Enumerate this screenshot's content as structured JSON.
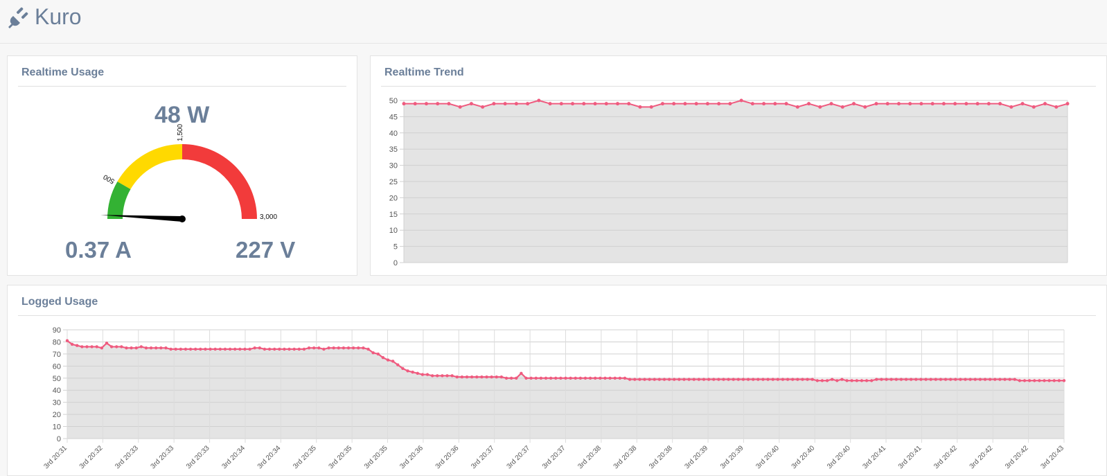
{
  "app": {
    "title": "Kuro",
    "icon": "plug-icon"
  },
  "panels": {
    "realtime_usage": {
      "title": "Realtime Usage",
      "power": "48 W",
      "current": "0.37 A",
      "voltage": "227 V",
      "gauge": {
        "min": 0,
        "max": 3000,
        "value": 48,
        "bands": [
          {
            "from": 0,
            "to": 500,
            "color": "#33b233"
          },
          {
            "from": 500,
            "to": 1500,
            "color": "#ffd900"
          },
          {
            "from": 1500,
            "to": 3000,
            "color": "#f23b3b"
          }
        ],
        "tick_labels": [
          "500",
          "1,500",
          "3,000"
        ]
      }
    },
    "realtime_trend": {
      "title": "Realtime Trend"
    },
    "logged_usage": {
      "title": "Logged Usage"
    }
  },
  "colors": {
    "accent": "#6b7f99",
    "line": "#ef5b7f",
    "fill": "#e4e4e4"
  },
  "chart_data": [
    {
      "type": "area",
      "title": "Realtime Trend",
      "ylim": [
        0,
        50
      ],
      "yticks": [
        "0",
        "5",
        "10",
        "15",
        "20",
        "25",
        "30",
        "35",
        "40",
        "45",
        "50"
      ],
      "grid": true,
      "values": [
        49,
        49,
        49,
        49,
        49,
        48,
        49,
        48,
        49,
        49,
        49,
        49,
        50,
        49,
        49,
        49,
        49,
        49,
        49,
        49,
        49,
        48,
        48,
        49,
        49,
        49,
        49,
        49,
        49,
        49,
        50,
        49,
        49,
        49,
        49,
        48,
        49,
        48,
        49,
        48,
        49,
        48,
        49,
        49,
        49,
        49,
        49,
        49,
        49,
        49,
        49,
        49,
        49,
        49,
        48,
        49,
        48,
        49,
        48,
        49
      ]
    },
    {
      "type": "area",
      "title": "Logged Usage",
      "ylim": [
        0,
        90
      ],
      "yticks": [
        "0",
        "10",
        "20",
        "30",
        "40",
        "50",
        "60",
        "70",
        "80",
        "90"
      ],
      "grid": true,
      "xtick_labels": [
        "3rd 20:31",
        "3rd 20:32",
        "3rd 20:33",
        "3rd 20:33",
        "3rd 20:33",
        "3rd 20:34",
        "3rd 20:34",
        "3rd 20:35",
        "3rd 20:35",
        "3rd 20:35",
        "3rd 20:36",
        "3rd 20:36",
        "3rd 20:37",
        "3rd 20:37",
        "3rd 20:37",
        "3rd 20:38",
        "3rd 20:38",
        "3rd 20:38",
        "3rd 20:39",
        "3rd 20:39",
        "3rd 20:40",
        "3rd 20:40",
        "3rd 20:40",
        "3rd 20:41",
        "3rd 20:41",
        "3rd 20:42",
        "3rd 20:42",
        "3rd 20:42",
        "3rd 20:43"
      ],
      "values": [
        81,
        78,
        77,
        76,
        76,
        76,
        76,
        75,
        79,
        76,
        76,
        76,
        75,
        75,
        75,
        76,
        75,
        75,
        75,
        75,
        75,
        74,
        74,
        74,
        74,
        74,
        74,
        74,
        74,
        74,
        74,
        74,
        74,
        74,
        74,
        74,
        74,
        74,
        75,
        75,
        74,
        74,
        74,
        74,
        74,
        74,
        74,
        74,
        74,
        75,
        75,
        75,
        74,
        75,
        75,
        75,
        75,
        75,
        75,
        75,
        75,
        74,
        71,
        70,
        67,
        65,
        64,
        61,
        58,
        56,
        55,
        54,
        53,
        53,
        52,
        52,
        52,
        52,
        52,
        51,
        51,
        51,
        51,
        51,
        51,
        51,
        51,
        51,
        51,
        50,
        50,
        50,
        54,
        50,
        50,
        50,
        50,
        50,
        50,
        50,
        50,
        50,
        50,
        50,
        50,
        50,
        50,
        50,
        50,
        50,
        50,
        50,
        50,
        50,
        49,
        49,
        49,
        49,
        49,
        49,
        49,
        49,
        49,
        49,
        49,
        49,
        49,
        49,
        49,
        49,
        49,
        49,
        49,
        49,
        49,
        49,
        49,
        49,
        49,
        49,
        49,
        49,
        49,
        49,
        49,
        49,
        49,
        49,
        49,
        49,
        49,
        49,
        48,
        48,
        48,
        49,
        48,
        49,
        48,
        48,
        48,
        48,
        48,
        48,
        49,
        49,
        49,
        49,
        49,
        49,
        49,
        49,
        49,
        49,
        49,
        49,
        49,
        49,
        49,
        49,
        49,
        49,
        49,
        49,
        49,
        49,
        49,
        49,
        49,
        49,
        49,
        49,
        49,
        48,
        48,
        48,
        48,
        48,
        48,
        48,
        48,
        48,
        48
      ]
    }
  ]
}
